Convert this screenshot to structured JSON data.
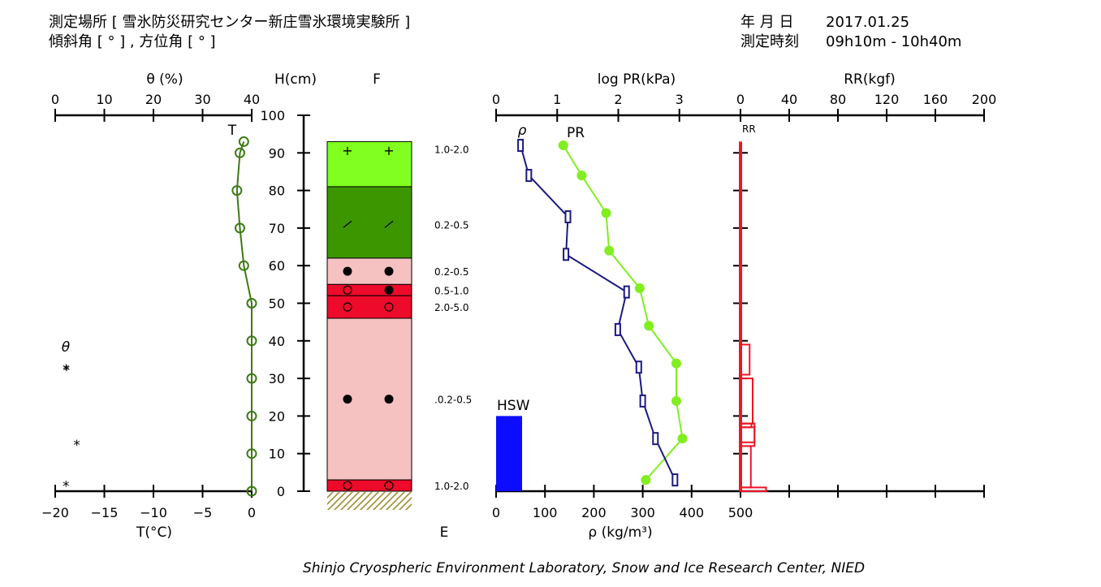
{
  "header": {
    "site": "測定場所 [ 雪氷防災研究センター新庄雪氷環境実験所 ]",
    "angles": "傾斜角 [ ° ] , 方位角 [ ° ]",
    "date_label": "年 月 日",
    "date_value": "2017.01.25",
    "time_label": "測定時刻",
    "time_value": "09h10m - 10h40m"
  },
  "footer": "Shinjo Cryospheric Environment Laboratory, Snow and Ice Research Center, NIED",
  "chart_data": [
    {
      "type": "line",
      "panel": "theta-temperature",
      "top_axis": {
        "label": "θ (%)",
        "ticks": [
          "0",
          "10",
          "20",
          "30",
          "40"
        ],
        "range": [
          0,
          40
        ]
      },
      "bottom_axis": {
        "label": "T(°C)",
        "ticks": [
          "−20",
          "−15",
          "−10",
          "−5",
          "0"
        ],
        "range": [
          -20,
          0
        ]
      },
      "temperature_marker": "T",
      "theta_legend": "θ",
      "theta_marker": "*",
      "temperature": {
        "h": [
          93,
          90,
          80,
          70,
          60,
          50,
          40,
          30,
          20,
          10,
          0
        ],
        "t": [
          -0.8,
          -1.2,
          -1.5,
          -1.2,
          -0.8,
          0.0,
          0.0,
          0.0,
          0.0,
          0.0,
          0.0
        ]
      },
      "theta_points": [
        {
          "h": 33,
          "t": -18.9
        },
        {
          "h": 13,
          "t": -17.8
        },
        {
          "h": 2,
          "t": -18.9
        }
      ]
    },
    {
      "type": "table",
      "panel": "layers",
      "h_axis": {
        "label": "H(cm)",
        "ticks": [
          "0",
          "10",
          "20",
          "30",
          "40",
          "50",
          "60",
          "70",
          "80",
          "90",
          "100"
        ],
        "range": [
          0,
          100
        ]
      },
      "f_label": "F",
      "e_label": "E",
      "layers": [
        {
          "bottom": 81,
          "top": 93,
          "color": "#80ff20",
          "symbol": "+",
          "e": "1.0-2.0"
        },
        {
          "bottom": 62,
          "top": 81,
          "color": "#3c9600",
          "symbol": "slash",
          "e": "0.2-0.5"
        },
        {
          "bottom": 55,
          "top": 62,
          "color": "#f5c1c1",
          "symbol": "dot",
          "e": "0.2-0.5"
        },
        {
          "bottom": 52,
          "top": 55,
          "color": "#ee0a2a",
          "symbol": "circle-dot",
          "e": "0.5-1.0"
        },
        {
          "bottom": 46,
          "top": 52,
          "color": "#ee0a2a",
          "symbol": "circle",
          "e": "2.0-5.0"
        },
        {
          "bottom": 3,
          "top": 46,
          "color": "#f5c1c1",
          "symbol": "dot",
          "e": ".0.2-0.5"
        },
        {
          "bottom": 0,
          "top": 3,
          "color": "#ee0a2a",
          "symbol": "circle",
          "e": "1.0-2.0"
        }
      ],
      "symbol_heights": [
        90.5,
        71,
        58.5,
        53.5,
        49,
        24.5,
        1.5
      ],
      "e_label_heights": [
        91,
        71,
        58.5,
        53.5,
        49,
        24.5,
        1.5
      ],
      "ground_hatch_color": "#a08c32"
    },
    {
      "type": "line",
      "panel": "density-pr",
      "top_axis": {
        "label": "log PR(kPa)",
        "ticks": [
          "0",
          "1",
          "2",
          "3"
        ],
        "range": [
          0,
          4
        ]
      },
      "bottom_axis": {
        "label": "ρ (kg/m³)",
        "ticks": [
          "0",
          "100",
          "200",
          "300",
          "400",
          "500"
        ],
        "range": [
          0,
          500
        ]
      },
      "series": [
        {
          "name": "ρ",
          "color": "#1a1a80",
          "h": [
            92,
            84,
            73,
            63,
            53,
            43,
            33,
            24,
            14,
            3
          ],
          "values": [
            50,
            67,
            147,
            143,
            267,
            249,
            292,
            300,
            326,
            366
          ]
        },
        {
          "name": "PR",
          "color": "#80ee20",
          "h": [
            92,
            84,
            74,
            64,
            54,
            44,
            34,
            24,
            14,
            3
          ],
          "values": [
            1.1,
            1.4,
            1.8,
            1.85,
            2.35,
            2.5,
            2.95,
            2.95,
            3.05,
            2.45
          ]
        }
      ],
      "hsw": {
        "label": "HSW",
        "value": 20,
        "color": "#0c0cff"
      }
    },
    {
      "type": "bar",
      "panel": "ram-resistance",
      "top_axis": {
        "label": "RR(kgf)",
        "ticks": [
          "0",
          "40",
          "80",
          "120",
          "160",
          "200"
        ],
        "range": [
          0,
          200
        ]
      },
      "series_label": "RR",
      "color": "#ee1525",
      "baseline": {
        "from": 0,
        "to": 93
      },
      "boxes": [
        {
          "bottom": 31,
          "top": 39,
          "value": 7.5
        },
        {
          "bottom": 18,
          "top": 30,
          "value": 10
        },
        {
          "bottom": 17,
          "top": 18,
          "value": 9
        },
        {
          "bottom": 13,
          "top": 17,
          "value": 11.5
        },
        {
          "bottom": 12,
          "top": 18,
          "value": 11.5
        },
        {
          "bottom": 1,
          "top": 12,
          "value": 8.5
        },
        {
          "bottom": 0,
          "top": 1,
          "value": 21
        }
      ]
    }
  ]
}
